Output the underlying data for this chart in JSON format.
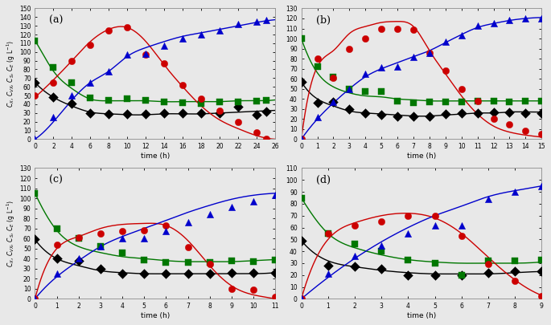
{
  "panels": {
    "a": {
      "label": "(a)",
      "xlim": [
        0,
        26
      ],
      "ylim": [
        0,
        150
      ],
      "xticks": [
        0,
        2,
        4,
        6,
        8,
        10,
        12,
        14,
        16,
        18,
        20,
        22,
        24,
        26
      ],
      "yticks": [
        0,
        10,
        20,
        30,
        40,
        50,
        60,
        70,
        80,
        90,
        100,
        110,
        120,
        130,
        140,
        150
      ],
      "scatter": {
        "black": {
          "x": [
            0,
            2,
            4,
            6,
            8,
            10,
            12,
            14,
            16,
            18,
            20,
            22,
            24,
            25
          ],
          "y": [
            65,
            48,
            41,
            30,
            29,
            29,
            29,
            30,
            30,
            30,
            30,
            37,
            28,
            32
          ]
        },
        "green": {
          "x": [
            0,
            2,
            4,
            6,
            8,
            10,
            12,
            14,
            16,
            18,
            20,
            22,
            24,
            25
          ],
          "y": [
            113,
            82,
            65,
            47,
            45,
            46,
            45,
            43,
            42,
            41,
            43,
            43,
            44,
            45
          ]
        },
        "red": {
          "x": [
            0,
            2,
            4,
            6,
            8,
            10,
            12,
            14,
            16,
            18,
            20,
            22,
            24,
            25
          ],
          "y": [
            50,
            65,
            90,
            108,
            125,
            128,
            97,
            87,
            62,
            46,
            33,
            20,
            8,
            0
          ]
        },
        "blue": {
          "x": [
            0,
            2,
            4,
            6,
            8,
            10,
            12,
            14,
            16,
            18,
            20,
            22,
            24,
            25
          ],
          "y": [
            0,
            25,
            50,
            65,
            78,
            97,
            98,
            107,
            115,
            120,
            125,
            132,
            135,
            137
          ]
        }
      },
      "lines": {
        "black": {
          "x": [
            0,
            2,
            4,
            6,
            8,
            10,
            12,
            14,
            16,
            18,
            20,
            22,
            24,
            26
          ],
          "y": [
            65,
            48,
            38,
            31,
            29,
            28,
            28,
            29,
            29,
            29,
            30,
            31,
            32,
            33
          ]
        },
        "green": {
          "x": [
            0,
            1,
            2,
            4,
            6,
            8,
            10,
            12,
            14,
            16,
            18,
            20,
            22,
            24,
            26
          ],
          "y": [
            113,
            95,
            78,
            58,
            46,
            44,
            44,
            44,
            43,
            43,
            43,
            43,
            44,
            44,
            45
          ]
        },
        "red": {
          "x": [
            0,
            2,
            4,
            6,
            8,
            10,
            12,
            14,
            16,
            18,
            20,
            22,
            24,
            26
          ],
          "y": [
            48,
            68,
            90,
            112,
            126,
            128,
            112,
            85,
            60,
            38,
            22,
            12,
            4,
            0
          ]
        },
        "blue": {
          "x": [
            0,
            2,
            4,
            6,
            8,
            10,
            12,
            14,
            16,
            18,
            20,
            22,
            24,
            26
          ],
          "y": [
            0,
            20,
            45,
            65,
            78,
            95,
            105,
            112,
            118,
            122,
            126,
            130,
            134,
            137
          ]
        }
      }
    },
    "b": {
      "label": "(b)",
      "xlim": [
        0,
        15
      ],
      "ylim": [
        0,
        130
      ],
      "xticks": [
        0,
        1,
        2,
        3,
        4,
        5,
        6,
        7,
        8,
        9,
        10,
        11,
        12,
        13,
        14,
        15
      ],
      "yticks": [
        0,
        10,
        20,
        30,
        40,
        50,
        60,
        70,
        80,
        90,
        100,
        110,
        120,
        130
      ],
      "scatter": {
        "black": {
          "x": [
            0,
            1,
            2,
            3,
            4,
            5,
            6,
            7,
            8,
            9,
            10,
            11,
            12,
            13,
            14,
            15
          ],
          "y": [
            57,
            36,
            37,
            30,
            26,
            24,
            23,
            23,
            23,
            25,
            26,
            26,
            27,
            27,
            26,
            26
          ]
        },
        "green": {
          "x": [
            0,
            1,
            2,
            3,
            4,
            5,
            6,
            7,
            8,
            9,
            10,
            11,
            12,
            13,
            14,
            15
          ],
          "y": [
            100,
            72,
            62,
            50,
            47,
            47,
            38,
            36,
            37,
            37,
            37,
            38,
            38,
            37,
            38,
            38
          ]
        },
        "red": {
          "x": [
            0,
            1,
            2,
            3,
            4,
            5,
            6,
            7,
            8,
            9,
            10,
            11,
            12,
            13,
            14,
            15
          ],
          "y": [
            0,
            80,
            61,
            90,
            100,
            110,
            110,
            109,
            86,
            68,
            50,
            38,
            20,
            15,
            8,
            5
          ]
        },
        "blue": {
          "x": [
            0,
            1,
            2,
            3,
            4,
            5,
            6,
            7,
            8,
            9,
            10,
            11,
            12,
            13,
            14,
            15
          ],
          "y": [
            0,
            22,
            37,
            50,
            65,
            71,
            72,
            82,
            86,
            97,
            103,
            113,
            115,
            118,
            120,
            120
          ]
        }
      },
      "lines": {
        "black": {
          "x": [
            0,
            1,
            2,
            3,
            4,
            5,
            6,
            7,
            8,
            9,
            10,
            11,
            12,
            13,
            14,
            15
          ],
          "y": [
            57,
            40,
            33,
            28,
            26,
            25,
            24,
            23,
            23,
            24,
            25,
            26,
            26,
            27,
            27,
            27
          ]
        },
        "green": {
          "x": [
            0,
            0.5,
            1,
            2,
            3,
            4,
            5,
            6,
            7,
            8,
            9,
            10,
            11,
            12,
            13,
            14,
            15
          ],
          "y": [
            100,
            80,
            66,
            52,
            46,
            43,
            42,
            40,
            39,
            38,
            38,
            38,
            38,
            38,
            38,
            38,
            38
          ]
        },
        "red": {
          "x": [
            0,
            1,
            2,
            3,
            4,
            5,
            6,
            7,
            8,
            9,
            10,
            11,
            12,
            13,
            14,
            15
          ],
          "y": [
            0,
            72,
            88,
            105,
            112,
            116,
            117,
            112,
            88,
            65,
            43,
            25,
            13,
            7,
            4,
            2
          ]
        },
        "blue": {
          "x": [
            0,
            1,
            2,
            3,
            4,
            5,
            6,
            7,
            8,
            9,
            10,
            11,
            12,
            13,
            14,
            15
          ],
          "y": [
            0,
            20,
            36,
            50,
            62,
            70,
            76,
            82,
            88,
            96,
            104,
            111,
            115,
            118,
            120,
            121
          ]
        }
      }
    },
    "c": {
      "label": "(c)",
      "xlim": [
        0,
        11
      ],
      "ylim": [
        0,
        130
      ],
      "xticks": [
        0,
        1,
        2,
        3,
        4,
        5,
        6,
        7,
        8,
        9,
        10,
        11
      ],
      "yticks": [
        0,
        10,
        20,
        30,
        40,
        50,
        60,
        70,
        80,
        90,
        100,
        110,
        120,
        130
      ],
      "scatter": {
        "black": {
          "x": [
            0,
            1,
            2,
            3,
            4,
            5,
            6,
            7,
            8,
            9,
            10,
            11
          ],
          "y": [
            59,
            40,
            38,
            30,
            25,
            25,
            25,
            25,
            25,
            26,
            26,
            26
          ]
        },
        "green": {
          "x": [
            0,
            1,
            2,
            3,
            4,
            5,
            6,
            7,
            8,
            9,
            10,
            11
          ],
          "y": [
            105,
            70,
            60,
            52,
            46,
            39,
            36,
            36,
            36,
            38,
            37,
            39
          ]
        },
        "red": {
          "x": [
            0,
            1,
            2,
            3,
            4,
            5,
            6,
            7,
            8,
            9,
            10,
            11
          ],
          "y": [
            0,
            54,
            61,
            65,
            67,
            68,
            73,
            51,
            35,
            10,
            9,
            2
          ]
        },
        "blue": {
          "x": [
            0,
            1,
            2,
            3,
            4,
            5,
            6,
            7,
            8,
            9,
            10,
            11
          ],
          "y": [
            0,
            25,
            40,
            52,
            60,
            60,
            67,
            76,
            84,
            91,
            97,
            103
          ]
        }
      },
      "lines": {
        "black": {
          "x": [
            0,
            1,
            2,
            3,
            4,
            5,
            6,
            7,
            8,
            9,
            10,
            11
          ],
          "y": [
            59,
            40,
            33,
            28,
            26,
            25,
            25,
            25,
            25,
            25,
            25,
            26
          ]
        },
        "green": {
          "x": [
            0,
            0.5,
            1,
            2,
            3,
            4,
            5,
            6,
            7,
            8,
            9,
            10,
            11
          ],
          "y": [
            105,
            84,
            68,
            52,
            46,
            42,
            40,
            38,
            37,
            37,
            37,
            38,
            39
          ]
        },
        "red": {
          "x": [
            0,
            1,
            2,
            3,
            4,
            5,
            6,
            7,
            8,
            9,
            10,
            11
          ],
          "y": [
            0,
            50,
            62,
            70,
            74,
            75,
            73,
            58,
            33,
            13,
            4,
            0
          ]
        },
        "blue": {
          "x": [
            0,
            1,
            2,
            3,
            4,
            5,
            6,
            7,
            8,
            9,
            10,
            11
          ],
          "y": [
            0,
            22,
            38,
            52,
            62,
            70,
            78,
            86,
            93,
            99,
            103,
            105
          ]
        }
      }
    },
    "d": {
      "label": "(d)",
      "xlim": [
        0,
        9
      ],
      "ylim": [
        0,
        110
      ],
      "xticks": [
        0,
        1,
        2,
        3,
        4,
        5,
        6,
        7,
        8,
        9
      ],
      "yticks": [
        0,
        10,
        20,
        30,
        40,
        50,
        60,
        70,
        80,
        90,
        100,
        110
      ],
      "scatter": {
        "black": {
          "x": [
            0,
            1,
            2,
            3,
            4,
            5,
            6,
            7,
            8,
            9
          ],
          "y": [
            49,
            28,
            27,
            25,
            20,
            20,
            20,
            22,
            23,
            23
          ]
        },
        "green": {
          "x": [
            0,
            1,
            2,
            3,
            4,
            5,
            6,
            7,
            8,
            9
          ],
          "y": [
            85,
            55,
            46,
            40,
            33,
            30,
            20,
            32,
            32,
            33
          ]
        },
        "red": {
          "x": [
            0,
            1,
            2,
            3,
            4,
            5,
            6,
            7,
            8,
            9
          ],
          "y": [
            0,
            55,
            62,
            65,
            70,
            70,
            53,
            29,
            15,
            2
          ]
        },
        "blue": {
          "x": [
            0,
            1,
            2,
            3,
            4,
            5,
            6,
            7,
            8,
            9
          ],
          "y": [
            0,
            21,
            36,
            45,
            55,
            62,
            62,
            84,
            90,
            95
          ]
        }
      },
      "lines": {
        "black": {
          "x": [
            0,
            1,
            2,
            3,
            4,
            5,
            6,
            7,
            8,
            9
          ],
          "y": [
            49,
            32,
            27,
            24,
            22,
            21,
            21,
            21,
            22,
            23
          ]
        },
        "green": {
          "x": [
            0,
            0.5,
            1,
            2,
            3,
            4,
            5,
            6,
            7,
            8,
            9
          ],
          "y": [
            85,
            68,
            55,
            43,
            37,
            33,
            31,
            30,
            30,
            30,
            31
          ]
        },
        "red": {
          "x": [
            0,
            1,
            2,
            3,
            4,
            5,
            6,
            7,
            8,
            9
          ],
          "y": [
            0,
            50,
            64,
            70,
            72,
            68,
            55,
            35,
            16,
            3
          ]
        },
        "blue": {
          "x": [
            0,
            1,
            2,
            3,
            4,
            5,
            6,
            7,
            8,
            9
          ],
          "y": [
            0,
            18,
            34,
            48,
            60,
            70,
            78,
            86,
            91,
            95
          ]
        }
      }
    }
  },
  "colors": {
    "black": "#000000",
    "green": "#007700",
    "red": "#cc0000",
    "blue": "#0000cc"
  },
  "xlabel": "time (h)",
  "marker_size": 6,
  "line_width": 1.0,
  "background": "#e8e8e8"
}
